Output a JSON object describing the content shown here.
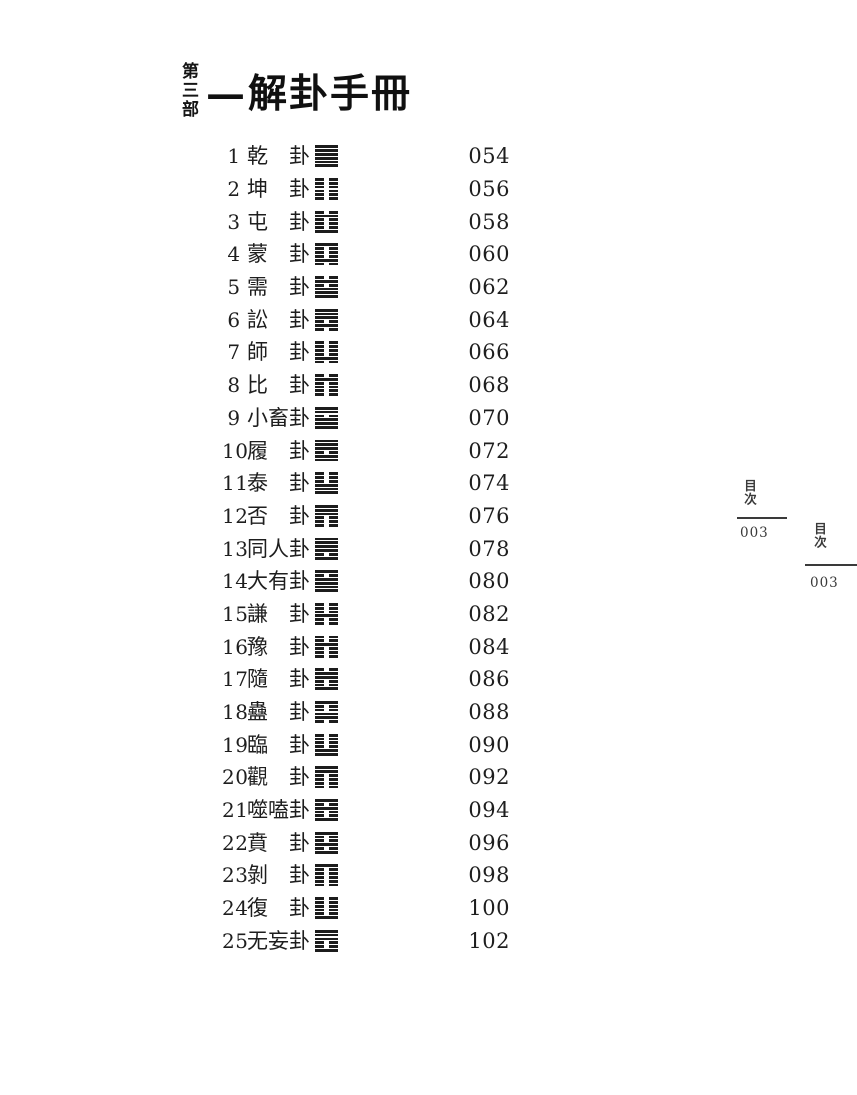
{
  "header": {
    "part_label": "第三部",
    "title_dash": "—",
    "title": "解卦手冊"
  },
  "toc": {
    "kua_suffix": "卦",
    "items": [
      {
        "num": "1",
        "name": "乾",
        "symbol": "䷀",
        "lines": "111111",
        "page": "054"
      },
      {
        "num": "2",
        "name": "坤",
        "symbol": "䷁",
        "lines": "000000",
        "page": "056"
      },
      {
        "num": "3",
        "name": "屯",
        "symbol": "䷂",
        "lines": "010001",
        "page": "058"
      },
      {
        "num": "4",
        "name": "蒙",
        "symbol": "䷃",
        "lines": "100010",
        "page": "060"
      },
      {
        "num": "5",
        "name": "需",
        "symbol": "䷄",
        "lines": "010111",
        "page": "062"
      },
      {
        "num": "6",
        "name": "訟",
        "symbol": "䷅",
        "lines": "111010",
        "page": "064"
      },
      {
        "num": "7",
        "name": "師",
        "symbol": "䷆",
        "lines": "000010",
        "page": "066"
      },
      {
        "num": "8",
        "name": "比",
        "symbol": "䷇",
        "lines": "010000",
        "page": "068"
      },
      {
        "num": "9",
        "name": "小畜",
        "symbol": "䷈",
        "lines": "110111",
        "page": "070"
      },
      {
        "num": "10",
        "name": "履",
        "symbol": "䷉",
        "lines": "111011",
        "page": "072"
      },
      {
        "num": "11",
        "name": "泰",
        "symbol": "䷊",
        "lines": "000111",
        "page": "074"
      },
      {
        "num": "12",
        "name": "否",
        "symbol": "䷋",
        "lines": "111000",
        "page": "076"
      },
      {
        "num": "13",
        "name": "同人",
        "symbol": "䷌",
        "lines": "111101",
        "page": "078"
      },
      {
        "num": "14",
        "name": "大有",
        "symbol": "䷍",
        "lines": "101111",
        "page": "080"
      },
      {
        "num": "15",
        "name": "謙",
        "symbol": "䷎",
        "lines": "000100",
        "page": "082"
      },
      {
        "num": "16",
        "name": "豫",
        "symbol": "䷏",
        "lines": "001000",
        "page": "084"
      },
      {
        "num": "17",
        "name": "隨",
        "symbol": "䷐",
        "lines": "011001",
        "page": "086"
      },
      {
        "num": "18",
        "name": "蠱",
        "symbol": "䷑",
        "lines": "100110",
        "page": "088"
      },
      {
        "num": "19",
        "name": "臨",
        "symbol": "䷒",
        "lines": "000011",
        "page": "090"
      },
      {
        "num": "20",
        "name": "觀",
        "symbol": "䷓",
        "lines": "110000",
        "page": "092"
      },
      {
        "num": "21",
        "name": "噬嗑",
        "symbol": "䷔",
        "lines": "101001",
        "page": "094"
      },
      {
        "num": "22",
        "name": "賁",
        "symbol": "䷕",
        "lines": "100101",
        "page": "096"
      },
      {
        "num": "23",
        "name": "剝",
        "symbol": "䷖",
        "lines": "100000",
        "page": "098"
      },
      {
        "num": "24",
        "name": "復",
        "symbol": "䷗",
        "lines": "000001",
        "page": "100"
      },
      {
        "num": "25",
        "name": "无妄",
        "symbol": "䷘",
        "lines": "111001",
        "page": "102"
      }
    ]
  },
  "margin_marks": [
    {
      "label": "目次",
      "page": "003"
    },
    {
      "label": "目次",
      "page": "003"
    }
  ]
}
